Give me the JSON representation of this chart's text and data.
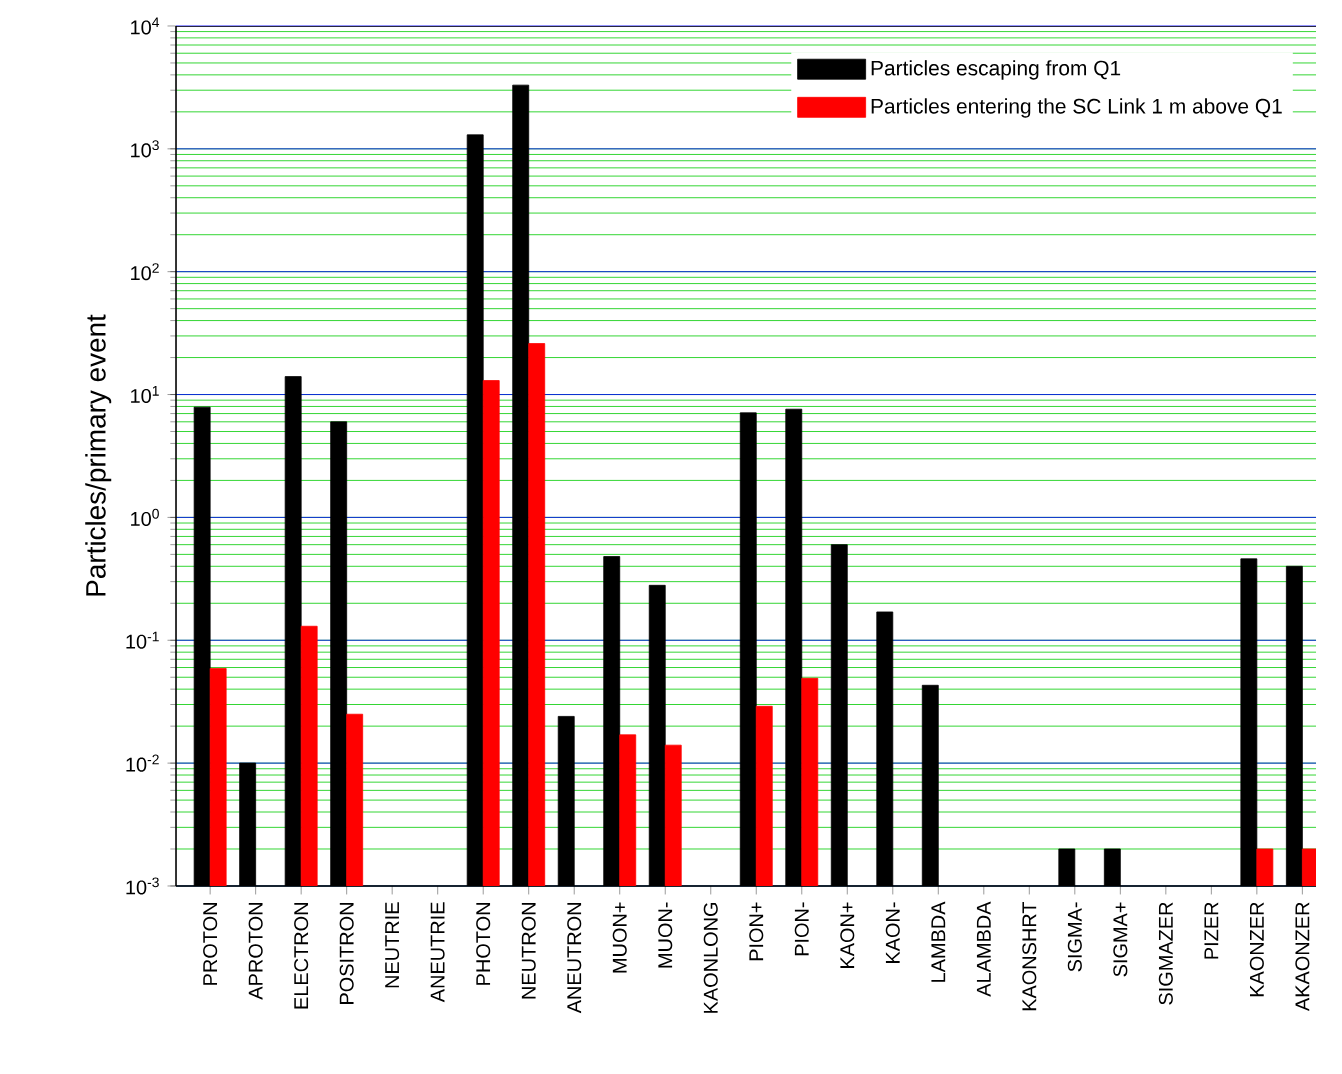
{
  "chart_data": {
    "type": "bar",
    "ylabel": "Particles/primary event",
    "log": true,
    "grid": "y",
    "legend": "top right",
    "categories": [
      "PROTON",
      "APROTON",
      "ELECTRON",
      "POSITRON",
      "NEUTRIE",
      "ANEUTRIE",
      "PHOTON",
      "NEUTRON",
      "ANEUTRON",
      "MUON+",
      "MUON-",
      "KAONLONG",
      "PION+",
      "PION-",
      "KAON+",
      "KAON-",
      "LAMBDA",
      "ALAMBDA",
      "KAONSHRT",
      "SIGMA-",
      "SIGMA+",
      "SIGMAZER",
      "PIZER",
      "KAONZER",
      "AKAONZER"
    ],
    "series": [
      {
        "name": "Particles escaping from Q1",
        "color": "#000000",
        "values": [
          7.9,
          0.01,
          14,
          6,
          null,
          null,
          1300,
          3300,
          0.024,
          0.48,
          0.28,
          null,
          7.1,
          7.6,
          0.6,
          0.17,
          0.043,
          null,
          null,
          0.002,
          0.002,
          null,
          null,
          0.46,
          0.4
        ]
      },
      {
        "name": "Particles entering the SC Link 1 m above Q1",
        "color": "#ff0000",
        "values": [
          0.059,
          null,
          0.13,
          0.025,
          null,
          null,
          13,
          26,
          null,
          0.017,
          0.014,
          null,
          0.029,
          0.049,
          null,
          null,
          null,
          null,
          null,
          null,
          null,
          null,
          null,
          0.002,
          0.002
        ]
      }
    ],
    "ylim": [
      0.001,
      10000
    ],
    "yticks": [
      {
        "value": 0.001,
        "label": "10$^{-3}$"
      },
      {
        "value": 0.01,
        "label": "10$^{-2}$"
      },
      {
        "value": 0.1,
        "label": "10$^{-1}$"
      },
      {
        "value": 1,
        "label": "10$^{0}$"
      },
      {
        "value": 10,
        "label": "10$^{1}$"
      },
      {
        "value": 100,
        "label": "10$^{2}$"
      },
      {
        "value": 1000,
        "label": "10$^{3}$"
      },
      {
        "value": 10000,
        "label": "10$^{4}$"
      }
    ]
  }
}
